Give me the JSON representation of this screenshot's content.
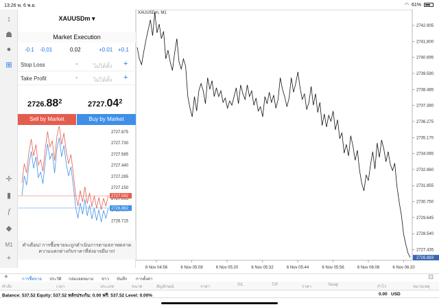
{
  "status": {
    "time": "13:26",
    "date": "พ. 6 พ.ย.",
    "battery": "61%"
  },
  "panel": {
    "symbol": "XAUUSDm",
    "execution": "Market Execution",
    "volume": {
      "m1": "-0.1",
      "m2": "-0.01",
      "value": "0.02",
      "p1": "+0.01",
      "p2": "+0.1"
    },
    "stop_loss": {
      "label": "Stop Loss",
      "placeholder": "ไม่ได้ตั้ง"
    },
    "take_profit": {
      "label": "Take Profit",
      "placeholder": "ไม่ได้ตั้ง"
    },
    "sell_price": {
      "head": "2726.",
      "big": "88",
      "sup": "2"
    },
    "buy_price": {
      "head": "2727.",
      "big": "04",
      "sup": "2"
    },
    "sell_button": "Sell by Market",
    "buy_button": "Buy by Market",
    "warning": "คำเตือน! การซื้อขายจะถูกดำเนินการตามสภาพตลาด ความแตกต่างกับราคาที่ส่งอาจมีมาก!",
    "tick_axis": [
      "2727.875",
      "2727.730",
      "2727.585",
      "2727.440",
      "2727.295",
      "2727.150",
      "2727.005",
      "2726.860",
      "2726.715"
    ],
    "tick_ask_label": "2727.042",
    "tick_bid_label": "2726.882"
  },
  "chart": {
    "title": "XAUUSDm, M1",
    "y_ticks": [
      "2742.905",
      "2741.800",
      "2740.695",
      "2739.590",
      "2738.485",
      "2737.380",
      "2736.275",
      "2735.170",
      "2734.065",
      "2732.960",
      "2731.855",
      "2730.750",
      "2729.645",
      "2728.540",
      "2727.435"
    ],
    "x_ticks": [
      "6 Nov 04:56",
      "6 Nov 05:08",
      "6 Nov 05:20",
      "6 Nov 05:32",
      "6 Nov 05:44",
      "6 Nov 05:56",
      "6 Nov 06:08",
      "6 Nov 06:20"
    ],
    "current_price": "2726.883"
  },
  "tabs": [
    "การซื้อขาย",
    "ประวัติ",
    "กล่องจดหมาย",
    "ข่าว",
    "บันทึก",
    "การตั้งค่า"
  ],
  "columns": [
    "คำสั่ง",
    "เวลา",
    "ประเภท",
    "ขนาด",
    "สัญลักษณ์",
    "ราคา",
    "S/L",
    "T/P",
    "ราคา",
    "Swap",
    "กำไร",
    "หมายเหตุ"
  ],
  "balance": {
    "text": "Balance: 537.52 Equity: 537.52 หลักประกัน: 0.00 ฟรี: 537.52 Level: 0.00%",
    "profit": "0.00",
    "currency": "USD"
  },
  "side_label": "M1",
  "colors": {
    "sell": "#e35d4e",
    "buy": "#3f8fe8",
    "accent": "#1a73e8"
  },
  "chart_data": {
    "type": "line",
    "title": "XAUUSDm, M1",
    "x_ticks": [
      "6 Nov 04:56",
      "6 Nov 05:08",
      "6 Nov 05:20",
      "6 Nov 05:32",
      "6 Nov 05:44",
      "6 Nov 05:56",
      "6 Nov 06:08",
      "6 Nov 06:20"
    ],
    "ylim": [
      2726.7,
      2744.0
    ],
    "series": [
      {
        "values": [
          2741.4,
          2740.6,
          2740.2,
          2741.1,
          2741.9,
          2742.6,
          2743.3,
          2742.2,
          2743.8,
          2742.4,
          2743.0,
          2742.0,
          2742.5,
          2740.6,
          2741.2,
          2740.4,
          2739.8,
          2741.0,
          2742.0,
          2740.4,
          2739.9,
          2740.6,
          2740.1,
          2738.0,
          2737.2,
          2736.6,
          2738.0,
          2737.0,
          2738.4,
          2738.9,
          2738.4,
          2737.5,
          2739.3,
          2738.5,
          2739.1,
          2738.0,
          2738.6,
          2738.0,
          2738.4,
          2737.6,
          2737.9,
          2737.2,
          2737.7,
          2737.4,
          2738.0,
          2738.6,
          2737.5,
          2738.8,
          2738.2,
          2737.8,
          2738.8,
          2738.0,
          2738.4,
          2737.4,
          2737.9,
          2737.0,
          2737.3,
          2736.6,
          2738.0,
          2737.5,
          2738.3,
          2737.6,
          2738.1,
          2737.2,
          2737.8,
          2739.3,
          2738.5,
          2738.0,
          2737.3,
          2737.9,
          2739.3,
          2738.3,
          2738.9,
          2739.7,
          2738.6,
          2737.8,
          2738.2,
          2737.1,
          2737.6,
          2738.7,
          2737.4,
          2738.2,
          2736.9,
          2737.6,
          2736.0,
          2736.8,
          2735.9,
          2736.7,
          2736.3,
          2737.0,
          2735.7,
          2736.4,
          2735.1,
          2735.5,
          2734.1,
          2734.7,
          2733.9,
          2735.3,
          2734.6,
          2733.6,
          2734.3,
          2732.9,
          2732.0,
          2731.5,
          2732.6,
          2732.2,
          2733.3,
          2734.2,
          2733.0,
          2734.8,
          2733.8,
          2735.0,
          2734.4,
          2733.5,
          2734.2,
          2733.3,
          2732.9,
          2733.4,
          2731.8,
          2730.7,
          2729.8,
          2728.5,
          2727.8,
          2727.2,
          2726.9
        ]
      }
    ]
  }
}
